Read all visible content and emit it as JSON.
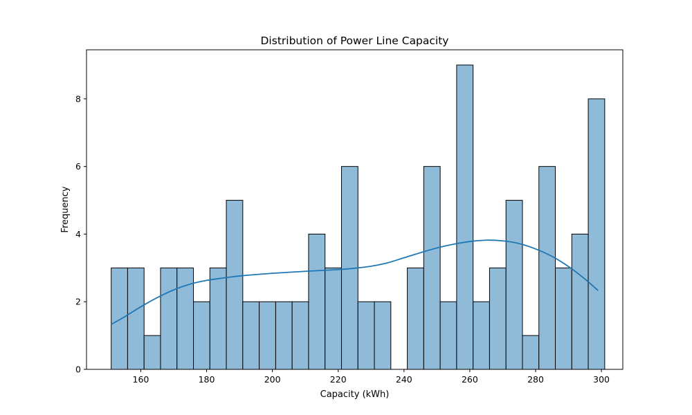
{
  "chart_data": {
    "type": "bar",
    "subtype": "histogram-with-kde",
    "title": "Distribution of Power Line Capacity",
    "xlabel": "Capacity (kWh)",
    "ylabel": "Frequency",
    "xlim": [
      143.5,
      306.5
    ],
    "ylim": [
      0,
      9.45
    ],
    "xticks": [
      160,
      180,
      200,
      220,
      240,
      260,
      280,
      300
    ],
    "yticks": [
      0,
      2,
      4,
      6,
      8
    ],
    "bins": {
      "start": 151,
      "width": 5,
      "counts": [
        3,
        3,
        1,
        3,
        3,
        2,
        3,
        5,
        2,
        2,
        2,
        2,
        4,
        3,
        6,
        2,
        2,
        0,
        3,
        6,
        2,
        9,
        2,
        3,
        5,
        1,
        6,
        3,
        4,
        8
      ]
    },
    "kde": {
      "x": [
        151,
        155,
        160,
        165,
        170,
        175,
        180,
        185,
        190,
        200,
        210,
        220,
        225,
        230,
        235,
        240,
        245,
        250,
        255,
        260,
        265,
        270,
        275,
        280,
        285,
        290,
        295,
        299
      ],
      "y": [
        1.33,
        1.55,
        1.85,
        2.12,
        2.35,
        2.52,
        2.63,
        2.7,
        2.76,
        2.84,
        2.9,
        2.95,
        2.99,
        3.05,
        3.15,
        3.3,
        3.45,
        3.59,
        3.7,
        3.78,
        3.82,
        3.8,
        3.72,
        3.56,
        3.34,
        3.04,
        2.67,
        2.33
      ]
    },
    "colors": {
      "bar_fill": "#8fbbd9",
      "bar_edge": "#000000",
      "kde_line": "#1f77b4"
    },
    "grid": false,
    "legend": "none"
  }
}
